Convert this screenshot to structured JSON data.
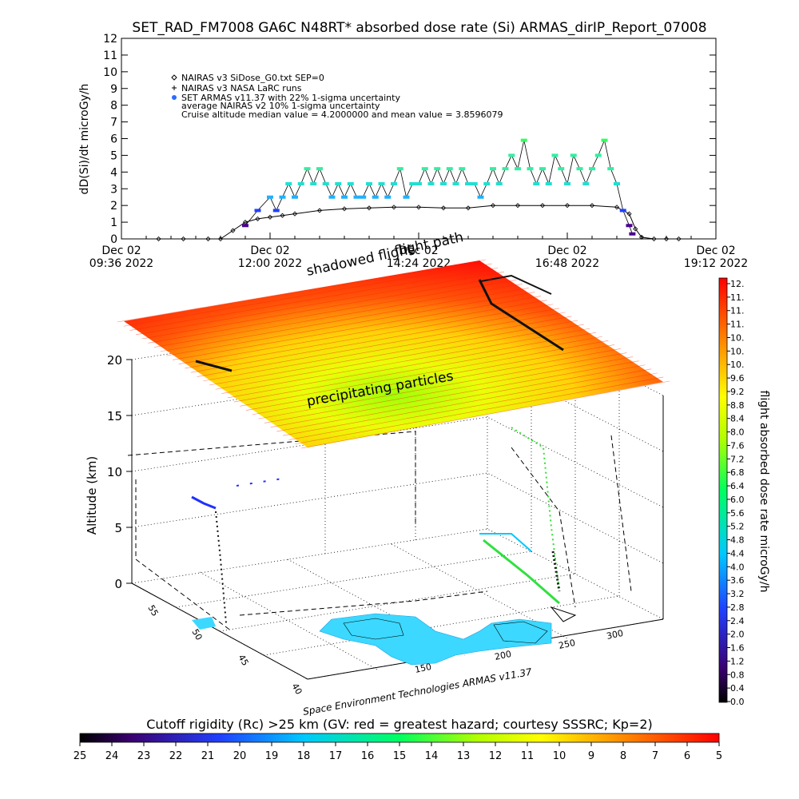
{
  "title": "SET_RAD_FM7008  GA6C N48RT* absorbed dose rate (Si) ARMAS_dirIP_Report_07008",
  "chart_data": [
    {
      "type": "scatter",
      "ylabel": "dD(Si)/dt microGy/h",
      "ylim": [
        0,
        12
      ],
      "yticks": [
        0,
        1,
        2,
        3,
        4,
        5,
        6,
        7,
        8,
        9,
        10,
        11,
        12
      ],
      "xticks": [
        {
          "hour": 9.6,
          "line1": "Dec 02",
          "line2": "09:36 2022"
        },
        {
          "hour": 12.0,
          "line1": "Dec 02",
          "line2": "12:00 2022"
        },
        {
          "hour": 14.4,
          "line1": "Dec 02",
          "line2": "14:24 2022"
        },
        {
          "hour": 16.8,
          "line1": "Dec 02",
          "line2": "16:48 2022"
        },
        {
          "hour": 19.2,
          "line1": "Dec 02",
          "line2": "19:12 2022"
        }
      ],
      "xlim": [
        9.6,
        19.2
      ],
      "legend": [
        "NAIRAS v3 SiDose_G0.txt SEP=0",
        "NAIRAS v3 NASA LaRC runs",
        "SET ARMAS v11.37 with 22% 1-sigma uncertainty",
        "average NAIRAS v2 10% 1-sigma uncertainty",
        "Cruise altitude median value =  4.2000000 and mean value =  3.8596079"
      ],
      "series": [
        {
          "name": "NAIRAS v3 SiDose_G0.txt SEP=0",
          "marker": "diamond",
          "color": "#000000",
          "x": [
            10.2,
            10.6,
            11.0,
            11.2,
            11.4,
            11.6,
            11.8,
            12.0,
            12.2,
            12.4,
            12.8,
            13.2,
            13.6,
            14.0,
            14.4,
            14.8,
            15.2,
            15.6,
            16.0,
            16.4,
            16.8,
            17.2,
            17.6,
            17.8,
            17.9,
            18.0,
            18.2,
            18.4,
            18.6
          ],
          "y": [
            0,
            0,
            0,
            0,
            0.5,
            1.0,
            1.2,
            1.3,
            1.4,
            1.5,
            1.7,
            1.8,
            1.85,
            1.9,
            1.9,
            1.85,
            1.85,
            2.0,
            2.0,
            2.0,
            2.0,
            2.0,
            1.9,
            1.5,
            0.6,
            0.1,
            0,
            0,
            0
          ]
        },
        {
          "name": "SET ARMAS v11.37 with 22% 1-sigma uncertainty",
          "marker": "dot",
          "color": "#2a6cff",
          "x": [
            11.6,
            11.8,
            12.0,
            12.1,
            12.2,
            12.3,
            12.4,
            12.5,
            12.6,
            12.7,
            12.8,
            12.9,
            13.0,
            13.1,
            13.2,
            13.3,
            13.4,
            13.5,
            13.6,
            13.7,
            13.8,
            13.9,
            14.0,
            14.1,
            14.2,
            14.3,
            14.4,
            14.5,
            14.6,
            14.7,
            14.8,
            14.9,
            15.0,
            15.1,
            15.2,
            15.3,
            15.4,
            15.5,
            15.6,
            15.7,
            15.8,
            15.9,
            16.0,
            16.1,
            16.2,
            16.3,
            16.4,
            16.5,
            16.6,
            16.7,
            16.8,
            16.9,
            17.0,
            17.1,
            17.2,
            17.3,
            17.4,
            17.5,
            17.6,
            17.7,
            17.8,
            17.85
          ],
          "y": [
            0.8,
            1.7,
            2.5,
            1.7,
            2.5,
            3.3,
            2.5,
            3.3,
            4.2,
            3.3,
            4.2,
            3.3,
            2.5,
            3.3,
            2.5,
            3.3,
            2.5,
            2.5,
            3.3,
            2.5,
            3.3,
            2.5,
            3.3,
            4.2,
            2.5,
            3.3,
            3.3,
            4.2,
            3.3,
            4.2,
            3.3,
            4.2,
            3.3,
            4.2,
            3.3,
            3.3,
            2.5,
            3.3,
            4.2,
            3.3,
            4.2,
            5.0,
            4.2,
            5.9,
            4.2,
            3.3,
            4.2,
            3.3,
            5.0,
            4.2,
            3.3,
            5.0,
            4.2,
            3.3,
            4.2,
            5.0,
            5.9,
            4.2,
            3.3,
            1.7,
            0.8,
            0.3
          ]
        }
      ]
    },
    {
      "type": "3d-surface-scatter",
      "zlabel": "Altitude (km)",
      "zlim": [
        0,
        20
      ],
      "zticks": [
        0,
        5,
        10,
        15,
        20
      ],
      "x_ticks": [
        "40",
        "45",
        "50",
        "55"
      ],
      "y_ticks": [
        "150",
        "200",
        "250",
        "300"
      ]
    }
  ],
  "annotations": {
    "flight_path": "flight path",
    "shadowed": "shadowed flight",
    "precipitating": "precipitating particles",
    "credit": "Space Environment Technologies ARMAS v11.37"
  },
  "colorbar_right": {
    "label": "flight absorbed dose rate microGy/h",
    "ticks": [
      "12.",
      "11.",
      "11.",
      "11.",
      "10.",
      "10.",
      "10.",
      "9.6",
      "9.2",
      "8.8",
      "8.4",
      "8.0",
      "7.6",
      "7.2",
      "6.8",
      "6.4",
      "6.0",
      "5.6",
      "5.2",
      "4.8",
      "4.4",
      "4.0",
      "3.6",
      "3.2",
      "2.8",
      "2.4",
      "2.0",
      "1.6",
      "1.2",
      "0.8",
      "0.4",
      "0.0"
    ]
  },
  "colorbar_bottom": {
    "label": "Cutoff rigidity (Rc) >25 km (GV: red = greatest hazard; courtesy SSSRC; Kp=2)",
    "ticks": [
      "25",
      "24",
      "23",
      "22",
      "21",
      "20",
      "19",
      "18",
      "17",
      "16",
      "15",
      "14",
      "13",
      "12",
      "11",
      "10",
      "9",
      "8",
      "7",
      "6",
      "5"
    ]
  },
  "colors": {
    "rainbow": [
      "#000000",
      "#3a0070",
      "#2020ff",
      "#00c8ff",
      "#00ff80",
      "#a0ff00",
      "#ffff00",
      "#ff9000",
      "#ff0000"
    ]
  }
}
